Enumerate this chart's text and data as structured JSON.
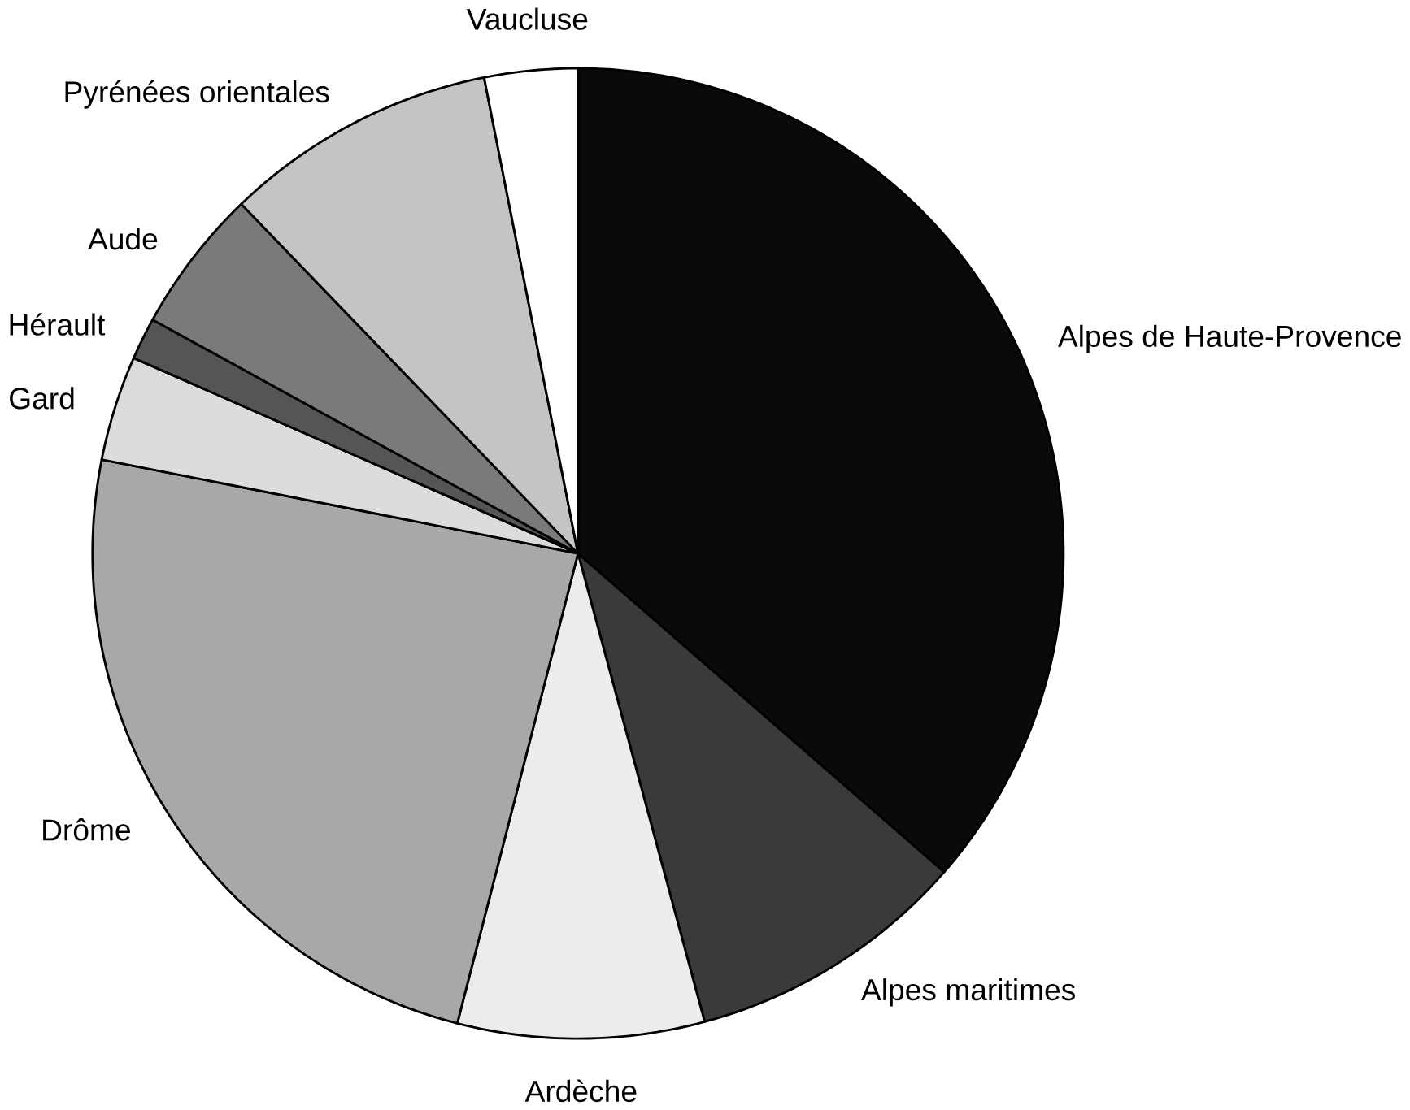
{
  "chart_data": {
    "type": "pie",
    "categories": [
      "Alpes de Haute-Provence",
      "Alpes maritimes",
      "Ardèche",
      "Drôme",
      "Gard",
      "Hérault",
      "Aude",
      "Pyrénées orientales",
      "Vaucluse"
    ],
    "values": [
      36.4,
      9.4,
      8.2,
      24.1,
      3.5,
      1.4,
      4.8,
      9.1,
      3.1
    ],
    "colors": [
      "#0a0a0a",
      "#3a3a3a",
      "#ececec",
      "#a8a8a8",
      "#dcdcdc",
      "#555555",
      "#7a7a7a",
      "#c4c4c4",
      "#ffffff"
    ]
  }
}
